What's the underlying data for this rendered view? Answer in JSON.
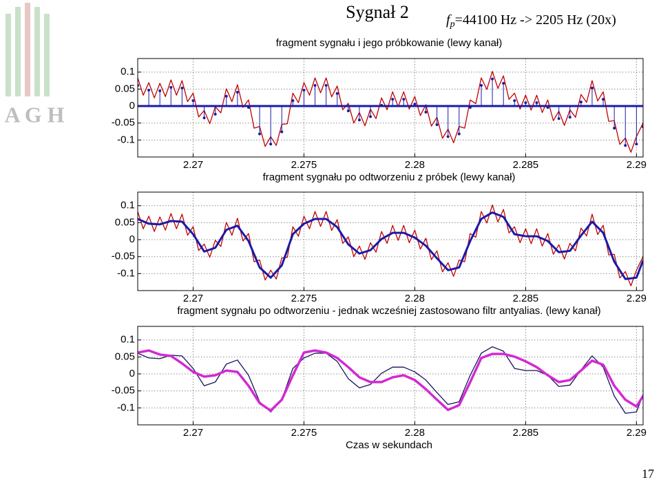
{
  "slide": {
    "title": "Sygnał 2",
    "rate_symbol": "f",
    "rate_sub": "p",
    "rate_text": "=44100 Hz  -> 2205 Hz (20x)",
    "page": "17",
    "logo": "A G H"
  },
  "chart_data": [
    {
      "type": "line",
      "title": "fragment sygnału i jego próbkowanie (lewy kanał)",
      "xlim": [
        2.2675,
        2.2903
      ],
      "ylim": [
        -0.15,
        0.14
      ],
      "xticks": [
        2.27,
        2.275,
        2.28,
        2.285,
        2.29
      ],
      "yticks": [
        0.1,
        0.05,
        0,
        -0.05,
        -0.1
      ],
      "grid": true,
      "series": [
        {
          "style": "line",
          "color": "#c00000",
          "x": [
            2.2675,
            2.26775,
            2.268,
            2.26825,
            2.2685,
            2.26875,
            2.269,
            2.26925,
            2.2695,
            2.26975,
            2.27,
            2.27025,
            2.2705,
            2.27075,
            2.271,
            2.27125,
            2.2715,
            2.27175,
            2.272,
            2.27225,
            2.2725,
            2.27275,
            2.273,
            2.27325,
            2.2735,
            2.27375,
            2.274,
            2.27425,
            2.2745,
            2.27475,
            2.275,
            2.27525,
            2.2755,
            2.27575,
            2.276,
            2.27625,
            2.2765,
            2.27675,
            2.277,
            2.27725,
            2.2775,
            2.27775,
            2.278,
            2.27825,
            2.2785,
            2.27875,
            2.279,
            2.27925,
            2.2795,
            2.27975,
            2.28,
            2.28025,
            2.2805,
            2.28075,
            2.281,
            2.28125,
            2.2815,
            2.28175,
            2.282,
            2.28225,
            2.2825,
            2.28275,
            2.283,
            2.28325,
            2.2835,
            2.28375,
            2.284,
            2.28425,
            2.2845,
            2.28475,
            2.285,
            2.28525,
            2.2855,
            2.28575,
            2.286,
            2.28625,
            2.2865,
            2.28675,
            2.287,
            2.28725,
            2.2875,
            2.28775,
            2.288,
            2.28825,
            2.2885,
            2.28875,
            2.289,
            2.28925,
            2.2895,
            2.28975,
            2.29,
            2.2903
          ],
          "values": [
            0.083,
            0.032,
            0.069,
            0.024,
            0.067,
            0.028,
            0.077,
            0.032,
            0.075,
            0.013,
            0.038,
            -0.032,
            -0.013,
            -0.052,
            -0.002,
            -0.02,
            0.051,
            0.013,
            0.063,
            -0.004,
            0.018,
            -0.065,
            -0.06,
            -0.119,
            -0.09,
            -0.116,
            -0.054,
            -0.052,
            0.038,
            0.01,
            0.069,
            0.032,
            0.083,
            0.039,
            0.083,
            0.027,
            0.059,
            -0.011,
            0.008,
            -0.05,
            -0.019,
            -0.058,
            -0.009,
            -0.037,
            0.024,
            -0.011,
            0.042,
            -0.002,
            0.042,
            -0.009,
            0.028,
            -0.028,
            0.004,
            -0.059,
            -0.033,
            -0.095,
            -0.068,
            -0.108,
            -0.06,
            -0.065,
            0.018,
            0.007,
            0.083,
            0.049,
            0.102,
            0.052,
            0.089,
            0.02,
            0.038,
            -0.009,
            0.032,
            -0.012,
            0.032,
            -0.019,
            0.018,
            -0.043,
            -0.015,
            -0.057,
            -0.011,
            -0.033,
            0.034,
            0.011,
            0.075,
            0.015,
            0.042,
            -0.045,
            -0.043,
            -0.113,
            -0.094,
            -0.136,
            -0.09,
            -0.05
          ]
        },
        {
          "style": "stem",
          "color": "#1a1aa8",
          "x": [
            2.2675,
            2.268,
            2.2685,
            2.269,
            2.2695,
            2.27,
            2.2705,
            2.271,
            2.2715,
            2.272,
            2.2725,
            2.273,
            2.2735,
            2.274,
            2.2745,
            2.275,
            2.2755,
            2.276,
            2.2765,
            2.277,
            2.2775,
            2.278,
            2.2785,
            2.279,
            2.2795,
            2.28,
            2.2805,
            2.281,
            2.2815,
            2.282,
            2.2825,
            2.283,
            2.2835,
            2.284,
            2.2845,
            2.285,
            2.2855,
            2.286,
            2.2865,
            2.287,
            2.2875,
            2.288,
            2.2885,
            2.289,
            2.2895,
            2.29,
            2.2903
          ],
          "values": [
            0.061,
            0.047,
            0.045,
            0.055,
            0.053,
            0.016,
            -0.035,
            -0.024,
            0.029,
            0.041,
            -0.004,
            -0.082,
            -0.112,
            -0.076,
            0.016,
            0.047,
            0.061,
            0.061,
            0.037,
            -0.014,
            -0.041,
            -0.031,
            0.002,
            0.02,
            0.02,
            0.006,
            -0.018,
            -0.055,
            -0.09,
            -0.082,
            -0.004,
            0.061,
            0.08,
            0.067,
            0.016,
            0.01,
            0.01,
            -0.004,
            -0.037,
            -0.033,
            0.012,
            0.053,
            0.02,
            -0.065,
            -0.116,
            -0.112,
            -0.061
          ]
        }
      ]
    },
    {
      "type": "line",
      "title": "fragment sygnału po odtworzeniu z próbek (lewy kanał)",
      "xlim": [
        2.2675,
        2.2903
      ],
      "ylim": [
        -0.15,
        0.14
      ],
      "xticks": [
        2.27,
        2.275,
        2.28,
        2.285,
        2.29
      ],
      "yticks": [
        0.1,
        0.05,
        0,
        -0.05,
        -0.1
      ],
      "grid": true,
      "series": [
        {
          "style": "line",
          "color": "#c00000",
          "width": 1.3,
          "x": [
            2.2675,
            2.26775,
            2.268,
            2.26825,
            2.2685,
            2.26875,
            2.269,
            2.26925,
            2.2695,
            2.26975,
            2.27,
            2.27025,
            2.2705,
            2.27075,
            2.271,
            2.27125,
            2.2715,
            2.27175,
            2.272,
            2.27225,
            2.2725,
            2.27275,
            2.273,
            2.27325,
            2.2735,
            2.27375,
            2.274,
            2.27425,
            2.2745,
            2.27475,
            2.275,
            2.27525,
            2.2755,
            2.27575,
            2.276,
            2.27625,
            2.2765,
            2.27675,
            2.277,
            2.27725,
            2.2775,
            2.27775,
            2.278,
            2.27825,
            2.2785,
            2.27875,
            2.279,
            2.27925,
            2.2795,
            2.27975,
            2.28,
            2.28025,
            2.2805,
            2.28075,
            2.281,
            2.28125,
            2.2815,
            2.28175,
            2.282,
            2.28225,
            2.2825,
            2.28275,
            2.283,
            2.28325,
            2.2835,
            2.28375,
            2.284,
            2.28425,
            2.2845,
            2.28475,
            2.285,
            2.28525,
            2.2855,
            2.28575,
            2.286,
            2.28625,
            2.2865,
            2.28675,
            2.287,
            2.28725,
            2.2875,
            2.28775,
            2.288,
            2.28825,
            2.2885,
            2.28875,
            2.289,
            2.28925,
            2.2895,
            2.28975,
            2.29,
            2.2903
          ],
          "values": [
            0.083,
            0.032,
            0.069,
            0.024,
            0.067,
            0.028,
            0.077,
            0.032,
            0.075,
            0.013,
            0.038,
            -0.032,
            -0.013,
            -0.052,
            -0.002,
            -0.02,
            0.051,
            0.013,
            0.063,
            -0.004,
            0.018,
            -0.065,
            -0.06,
            -0.119,
            -0.09,
            -0.116,
            -0.054,
            -0.052,
            0.038,
            0.01,
            0.069,
            0.032,
            0.083,
            0.039,
            0.083,
            0.027,
            0.059,
            -0.011,
            0.008,
            -0.05,
            -0.019,
            -0.058,
            -0.009,
            -0.037,
            0.024,
            -0.011,
            0.042,
            -0.002,
            0.042,
            -0.009,
            0.028,
            -0.028,
            0.004,
            -0.059,
            -0.033,
            -0.095,
            -0.068,
            -0.108,
            -0.06,
            -0.065,
            0.018,
            0.007,
            0.083,
            0.049,
            0.102,
            0.052,
            0.089,
            0.02,
            0.038,
            -0.009,
            0.032,
            -0.012,
            0.032,
            -0.019,
            0.018,
            -0.043,
            -0.015,
            -0.057,
            -0.011,
            -0.033,
            0.034,
            0.011,
            0.075,
            0.015,
            0.042,
            -0.045,
            -0.043,
            -0.113,
            -0.094,
            -0.136,
            -0.09,
            -0.05
          ]
        },
        {
          "style": "line",
          "color": "#1a1aa8",
          "width": 3,
          "x": [
            2.2675,
            2.268,
            2.2685,
            2.269,
            2.2695,
            2.27,
            2.2705,
            2.271,
            2.2715,
            2.272,
            2.2725,
            2.273,
            2.2735,
            2.274,
            2.2745,
            2.275,
            2.2755,
            2.276,
            2.2765,
            2.277,
            2.2775,
            2.278,
            2.2785,
            2.279,
            2.2795,
            2.28,
            2.2805,
            2.281,
            2.2815,
            2.282,
            2.2825,
            2.283,
            2.2835,
            2.284,
            2.2845,
            2.285,
            2.2855,
            2.286,
            2.2865,
            2.287,
            2.2875,
            2.288,
            2.2885,
            2.289,
            2.2895,
            2.29,
            2.2903
          ],
          "values": [
            0.061,
            0.047,
            0.045,
            0.055,
            0.053,
            0.016,
            -0.035,
            -0.024,
            0.029,
            0.041,
            -0.004,
            -0.082,
            -0.112,
            -0.076,
            0.016,
            0.047,
            0.061,
            0.061,
            0.037,
            -0.014,
            -0.041,
            -0.031,
            0.002,
            0.02,
            0.02,
            0.006,
            -0.018,
            -0.055,
            -0.09,
            -0.082,
            -0.004,
            0.061,
            0.08,
            0.067,
            0.016,
            0.01,
            0.01,
            -0.004,
            -0.037,
            -0.033,
            0.012,
            0.053,
            0.02,
            -0.065,
            -0.116,
            -0.112,
            -0.061
          ]
        }
      ]
    },
    {
      "type": "line",
      "title": "fragment sygnału po odtworzeniu - jednak wcześniej zastosowano filtr antyalias. (lewy kanał)",
      "x_label": "Czas w sekundach",
      "xlim": [
        2.2675,
        2.2903
      ],
      "ylim": [
        -0.15,
        0.14
      ],
      "xticks": [
        2.27,
        2.275,
        2.28,
        2.285,
        2.29
      ],
      "yticks": [
        0.1,
        0.05,
        0,
        -0.05,
        -0.1
      ],
      "grid": true,
      "series": [
        {
          "style": "line",
          "color": "#14145a",
          "width": 1.3,
          "x": [
            2.2675,
            2.268,
            2.2685,
            2.269,
            2.2695,
            2.27,
            2.2705,
            2.271,
            2.2715,
            2.272,
            2.2725,
            2.273,
            2.2735,
            2.274,
            2.2745,
            2.275,
            2.2755,
            2.276,
            2.2765,
            2.277,
            2.2775,
            2.278,
            2.2785,
            2.279,
            2.2795,
            2.28,
            2.2805,
            2.281,
            2.2815,
            2.282,
            2.2825,
            2.283,
            2.2835,
            2.284,
            2.2845,
            2.285,
            2.2855,
            2.286,
            2.2865,
            2.287,
            2.2875,
            2.288,
            2.2885,
            2.289,
            2.2895,
            2.29,
            2.2903
          ],
          "values": [
            0.061,
            0.047,
            0.045,
            0.055,
            0.053,
            0.016,
            -0.035,
            -0.024,
            0.029,
            0.041,
            -0.004,
            -0.082,
            -0.112,
            -0.076,
            0.016,
            0.047,
            0.061,
            0.061,
            0.037,
            -0.014,
            -0.041,
            -0.031,
            0.002,
            0.02,
            0.02,
            0.006,
            -0.018,
            -0.055,
            -0.09,
            -0.082,
            -0.004,
            0.061,
            0.08,
            0.067,
            0.016,
            0.01,
            0.01,
            -0.004,
            -0.037,
            -0.033,
            0.012,
            0.053,
            0.02,
            -0.065,
            -0.116,
            -0.112,
            -0.061
          ]
        },
        {
          "style": "line",
          "color": "#d22ad2",
          "width": 3.5,
          "x": [
            2.2675,
            2.268,
            2.2685,
            2.269,
            2.2695,
            2.27,
            2.2705,
            2.271,
            2.2715,
            2.272,
            2.2725,
            2.273,
            2.2735,
            2.274,
            2.2745,
            2.275,
            2.2755,
            2.276,
            2.2765,
            2.277,
            2.2775,
            2.278,
            2.2785,
            2.279,
            2.2795,
            2.28,
            2.2805,
            2.281,
            2.2815,
            2.282,
            2.2825,
            2.283,
            2.2835,
            2.284,
            2.2845,
            2.285,
            2.2855,
            2.286,
            2.2865,
            2.287,
            2.2875,
            2.288,
            2.2885,
            2.289,
            2.2895,
            2.29,
            2.2903
          ],
          "values": [
            0.063,
            0.069,
            0.057,
            0.053,
            0.031,
            0.006,
            -0.008,
            -0.004,
            0.01,
            0.006,
            -0.035,
            -0.086,
            -0.108,
            -0.076,
            -0.004,
            0.063,
            0.069,
            0.063,
            0.047,
            0.02,
            -0.01,
            -0.024,
            -0.024,
            -0.01,
            -0.004,
            -0.018,
            -0.045,
            -0.076,
            -0.106,
            -0.092,
            -0.024,
            0.047,
            0.059,
            0.059,
            0.051,
            0.037,
            0.02,
            -0.004,
            -0.024,
            -0.018,
            0.01,
            0.039,
            0.027,
            -0.035,
            -0.076,
            -0.096,
            -0.065
          ]
        }
      ]
    }
  ]
}
